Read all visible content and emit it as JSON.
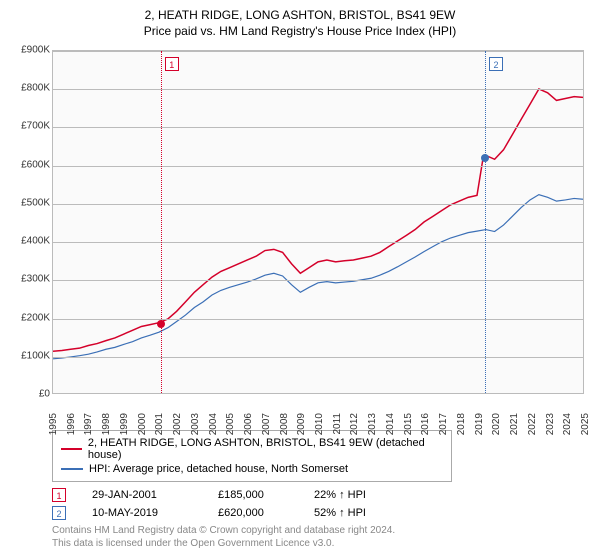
{
  "title": {
    "line1": "2, HEATH RIDGE, LONG ASHTON, BRISTOL, BS41 9EW",
    "line2": "Price paid vs. HM Land Registry's House Price Index (HPI)"
  },
  "chart": {
    "type": "line",
    "background_color": "#fafafa",
    "grid_color": "#bbbbbb",
    "ylim": [
      0,
      900000
    ],
    "ytick_step": 100000,
    "yticks": [
      "£0",
      "£100K",
      "£200K",
      "£300K",
      "£400K",
      "£500K",
      "£600K",
      "£700K",
      "£800K",
      "£900K"
    ],
    "xlim": [
      1995,
      2025
    ],
    "xticks": [
      "1995",
      "1996",
      "1997",
      "1998",
      "1999",
      "2000",
      "2001",
      "2002",
      "2003",
      "2004",
      "2005",
      "2006",
      "2007",
      "2008",
      "2009",
      "2010",
      "2011",
      "2012",
      "2013",
      "2014",
      "2015",
      "2016",
      "2017",
      "2018",
      "2019",
      "2020",
      "2021",
      "2022",
      "2023",
      "2024",
      "2025"
    ],
    "series": [
      {
        "id": "property",
        "label": "2, HEATH RIDGE, LONG ASHTON, BRISTOL, BS41 9EW (detached house)",
        "color": "#d4002a",
        "line_width": 1.5,
        "points": [
          [
            1995.0,
            110000
          ],
          [
            1995.5,
            112000
          ],
          [
            1996.0,
            115000
          ],
          [
            1996.5,
            118000
          ],
          [
            1997.0,
            125000
          ],
          [
            1997.5,
            130000
          ],
          [
            1998.0,
            138000
          ],
          [
            1998.5,
            145000
          ],
          [
            1999.0,
            155000
          ],
          [
            1999.5,
            165000
          ],
          [
            2000.0,
            175000
          ],
          [
            2000.5,
            180000
          ],
          [
            2001.0,
            185000
          ],
          [
            2001.5,
            195000
          ],
          [
            2002.0,
            215000
          ],
          [
            2002.5,
            240000
          ],
          [
            2003.0,
            265000
          ],
          [
            2003.5,
            285000
          ],
          [
            2004.0,
            305000
          ],
          [
            2004.5,
            320000
          ],
          [
            2005.0,
            330000
          ],
          [
            2005.5,
            340000
          ],
          [
            2006.0,
            350000
          ],
          [
            2006.5,
            360000
          ],
          [
            2007.0,
            375000
          ],
          [
            2007.5,
            378000
          ],
          [
            2008.0,
            370000
          ],
          [
            2008.5,
            340000
          ],
          [
            2009.0,
            315000
          ],
          [
            2009.5,
            330000
          ],
          [
            2010.0,
            345000
          ],
          [
            2010.5,
            350000
          ],
          [
            2011.0,
            345000
          ],
          [
            2011.5,
            348000
          ],
          [
            2012.0,
            350000
          ],
          [
            2012.5,
            355000
          ],
          [
            2013.0,
            360000
          ],
          [
            2013.5,
            370000
          ],
          [
            2014.0,
            385000
          ],
          [
            2014.5,
            400000
          ],
          [
            2015.0,
            415000
          ],
          [
            2015.5,
            430000
          ],
          [
            2016.0,
            450000
          ],
          [
            2016.5,
            465000
          ],
          [
            2017.0,
            480000
          ],
          [
            2017.5,
            495000
          ],
          [
            2018.0,
            505000
          ],
          [
            2018.5,
            515000
          ],
          [
            2019.0,
            520000
          ],
          [
            2019.35,
            620000
          ],
          [
            2019.5,
            625000
          ],
          [
            2020.0,
            615000
          ],
          [
            2020.5,
            640000
          ],
          [
            2021.0,
            680000
          ],
          [
            2021.5,
            720000
          ],
          [
            2022.0,
            760000
          ],
          [
            2022.5,
            800000
          ],
          [
            2023.0,
            790000
          ],
          [
            2023.5,
            770000
          ],
          [
            2024.0,
            775000
          ],
          [
            2024.5,
            780000
          ],
          [
            2025.0,
            778000
          ]
        ]
      },
      {
        "id": "hpi",
        "label": "HPI: Average price, detached house, North Somerset",
        "color": "#3b6fb6",
        "line_width": 1.2,
        "points": [
          [
            1995.0,
            90000
          ],
          [
            1995.5,
            92000
          ],
          [
            1996.0,
            95000
          ],
          [
            1996.5,
            98000
          ],
          [
            1997.0,
            102000
          ],
          [
            1997.5,
            108000
          ],
          [
            1998.0,
            115000
          ],
          [
            1998.5,
            120000
          ],
          [
            1999.0,
            128000
          ],
          [
            1999.5,
            135000
          ],
          [
            2000.0,
            145000
          ],
          [
            2000.5,
            152000
          ],
          [
            2001.0,
            160000
          ],
          [
            2001.5,
            172000
          ],
          [
            2002.0,
            188000
          ],
          [
            2002.5,
            205000
          ],
          [
            2003.0,
            225000
          ],
          [
            2003.5,
            240000
          ],
          [
            2004.0,
            258000
          ],
          [
            2004.5,
            270000
          ],
          [
            2005.0,
            278000
          ],
          [
            2005.5,
            285000
          ],
          [
            2006.0,
            292000
          ],
          [
            2006.5,
            300000
          ],
          [
            2007.0,
            310000
          ],
          [
            2007.5,
            315000
          ],
          [
            2008.0,
            308000
          ],
          [
            2008.5,
            285000
          ],
          [
            2009.0,
            265000
          ],
          [
            2009.5,
            278000
          ],
          [
            2010.0,
            290000
          ],
          [
            2010.5,
            293000
          ],
          [
            2011.0,
            290000
          ],
          [
            2011.5,
            292000
          ],
          [
            2012.0,
            294000
          ],
          [
            2012.5,
            298000
          ],
          [
            2013.0,
            302000
          ],
          [
            2013.5,
            310000
          ],
          [
            2014.0,
            320000
          ],
          [
            2014.5,
            332000
          ],
          [
            2015.0,
            345000
          ],
          [
            2015.5,
            358000
          ],
          [
            2016.0,
            372000
          ],
          [
            2016.5,
            385000
          ],
          [
            2017.0,
            398000
          ],
          [
            2017.5,
            408000
          ],
          [
            2018.0,
            415000
          ],
          [
            2018.5,
            422000
          ],
          [
            2019.0,
            426000
          ],
          [
            2019.5,
            430000
          ],
          [
            2020.0,
            425000
          ],
          [
            2020.5,
            442000
          ],
          [
            2021.0,
            465000
          ],
          [
            2021.5,
            488000
          ],
          [
            2022.0,
            508000
          ],
          [
            2022.5,
            522000
          ],
          [
            2023.0,
            515000
          ],
          [
            2023.5,
            505000
          ],
          [
            2024.0,
            508000
          ],
          [
            2024.5,
            512000
          ],
          [
            2025.0,
            510000
          ]
        ]
      }
    ],
    "markers": [
      {
        "n": "1",
        "x": 2001.08,
        "y": 185000,
        "color": "#d4002a"
      },
      {
        "n": "2",
        "x": 2019.36,
        "y": 620000,
        "color": "#3b6fb6"
      }
    ]
  },
  "legend": {
    "items": [
      {
        "color": "#d4002a",
        "label": "2, HEATH RIDGE, LONG ASHTON, BRISTOL, BS41 9EW (detached house)"
      },
      {
        "color": "#3b6fb6",
        "label": "HPI: Average price, detached house, North Somerset"
      }
    ]
  },
  "sales": [
    {
      "n": "1",
      "color": "#d4002a",
      "date": "29-JAN-2001",
      "price": "£185,000",
      "pct": "22% ↑ HPI"
    },
    {
      "n": "2",
      "color": "#3b6fb6",
      "date": "10-MAY-2019",
      "price": "£620,000",
      "pct": "52% ↑ HPI"
    }
  ],
  "footer": {
    "line1": "Contains HM Land Registry data © Crown copyright and database right 2024.",
    "line2": "This data is licensed under the Open Government Licence v3.0."
  }
}
